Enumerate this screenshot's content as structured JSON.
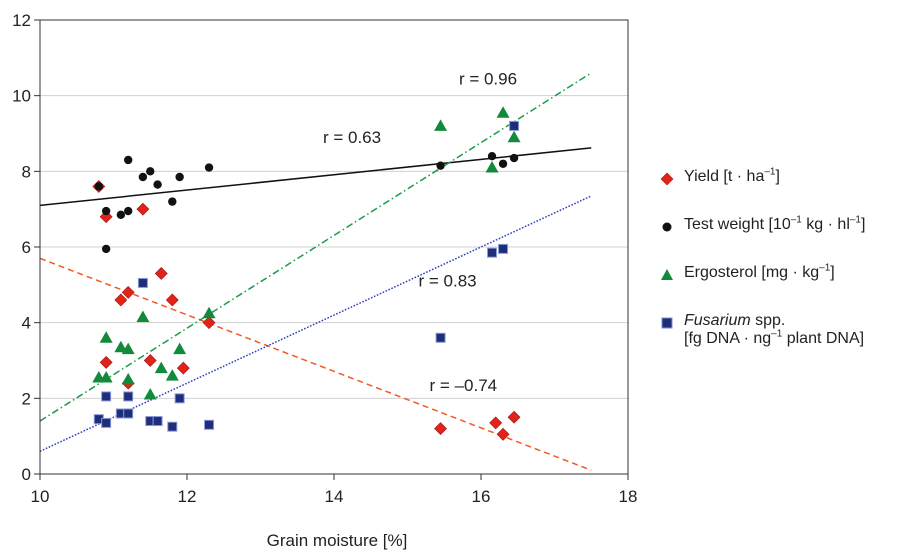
{
  "chart_data": {
    "type": "scatter",
    "xlabel": "Grain moisture [%]",
    "ylabel": "",
    "xlim": [
      10,
      18
    ],
    "ylim": [
      0,
      12
    ],
    "xticks": [
      10,
      12,
      14,
      16,
      18
    ],
    "yticks": [
      0,
      2,
      4,
      6,
      8,
      10,
      12
    ],
    "grid": "horizontal",
    "legend_position": "right",
    "series": [
      {
        "name": "Yield [t · ha⁻¹]",
        "marker": "diamond",
        "color": "#e2231a",
        "points": [
          [
            10.8,
            7.6
          ],
          [
            10.9,
            6.8
          ],
          [
            11.4,
            7.0
          ],
          [
            11.1,
            4.6
          ],
          [
            11.2,
            4.8
          ],
          [
            11.65,
            5.3
          ],
          [
            11.8,
            4.6
          ],
          [
            12.3,
            4.0
          ],
          [
            10.9,
            2.95
          ],
          [
            11.5,
            3.0
          ],
          [
            11.95,
            2.8
          ],
          [
            11.2,
            2.4
          ],
          [
            15.45,
            1.2
          ],
          [
            16.2,
            1.35
          ],
          [
            16.3,
            1.05
          ],
          [
            16.45,
            1.5
          ]
        ],
        "fit": {
          "r_label": "r = –0.74",
          "x": [
            10,
            17.5
          ],
          "y": [
            5.7,
            0.1
          ],
          "color": "#f15a22",
          "style": "dashed"
        }
      },
      {
        "name": "Test weight [10⁻¹ kg · hl⁻¹]",
        "marker": "circle",
        "color": "#111111",
        "points": [
          [
            10.8,
            7.6
          ],
          [
            10.9,
            6.95
          ],
          [
            10.9,
            5.95
          ],
          [
            11.1,
            6.85
          ],
          [
            11.2,
            6.95
          ],
          [
            11.2,
            8.3
          ],
          [
            11.4,
            7.85
          ],
          [
            11.5,
            8.0
          ],
          [
            11.6,
            7.65
          ],
          [
            11.8,
            7.2
          ],
          [
            11.9,
            7.85
          ],
          [
            12.3,
            8.1
          ],
          [
            15.45,
            8.15
          ],
          [
            16.15,
            8.4
          ],
          [
            16.3,
            8.2
          ],
          [
            16.45,
            8.35
          ]
        ],
        "fit": {
          "r_label": "r = 0.63",
          "x": [
            10,
            17.5
          ],
          "y": [
            7.1,
            8.62
          ],
          "color": "#111111",
          "style": "solid"
        }
      },
      {
        "name": "Ergosterol [mg · kg⁻¹]",
        "marker": "triangle",
        "color": "#128a3c",
        "points": [
          [
            10.8,
            2.55
          ],
          [
            10.9,
            3.6
          ],
          [
            10.9,
            2.55
          ],
          [
            11.1,
            3.35
          ],
          [
            11.2,
            3.3
          ],
          [
            11.2,
            2.5
          ],
          [
            11.4,
            4.15
          ],
          [
            11.5,
            2.1
          ],
          [
            11.65,
            2.8
          ],
          [
            11.8,
            2.6
          ],
          [
            11.9,
            3.3
          ],
          [
            12.3,
            4.25
          ],
          [
            15.45,
            9.2
          ],
          [
            16.15,
            8.1
          ],
          [
            16.3,
            9.55
          ],
          [
            16.45,
            8.9
          ]
        ],
        "fit": {
          "r_label": "r = 0.96",
          "x": [
            10,
            17.5
          ],
          "y": [
            1.4,
            10.6
          ],
          "color": "#1a9a4a",
          "style": "dashdot"
        }
      },
      {
        "name": "Fusarium spp. [fg DNA · ng⁻¹ plant DNA]",
        "marker": "square",
        "color": "#1f2e7a",
        "points": [
          [
            10.8,
            1.45
          ],
          [
            10.9,
            2.05
          ],
          [
            10.9,
            1.35
          ],
          [
            11.1,
            1.6
          ],
          [
            11.2,
            1.6
          ],
          [
            11.2,
            2.05
          ],
          [
            11.4,
            5.05
          ],
          [
            11.5,
            1.4
          ],
          [
            11.6,
            1.4
          ],
          [
            11.8,
            1.25
          ],
          [
            11.9,
            2.0
          ],
          [
            12.3,
            1.3
          ],
          [
            15.45,
            3.6
          ],
          [
            16.15,
            5.85
          ],
          [
            16.3,
            5.95
          ],
          [
            16.45,
            9.2
          ]
        ],
        "fit": {
          "r_label": "r = 0.83",
          "x": [
            10,
            17.5
          ],
          "y": [
            0.6,
            7.35
          ],
          "color": "#2f3fbf",
          "style": "dotted"
        }
      }
    ]
  },
  "legend": {
    "yield_label": "Yield [t · ha",
    "yield_sup": "–1",
    "yield_end": "]",
    "test_weight_label": "Test weight [10",
    "test_weight_sup1": "–1",
    "test_weight_mid": " kg · hl",
    "test_weight_sup2": "–1",
    "test_weight_end": "]",
    "ergosterol_label": "Ergosterol [mg · kg",
    "ergosterol_sup": "–1",
    "ergosterol_end": "]",
    "fusarium_italic": "Fusarium",
    "fusarium_label": " spp.",
    "fusarium_line2a": "[fg DNA · ng",
    "fusarium_sup": "–1",
    "fusarium_line2b": " plant DNA]"
  }
}
